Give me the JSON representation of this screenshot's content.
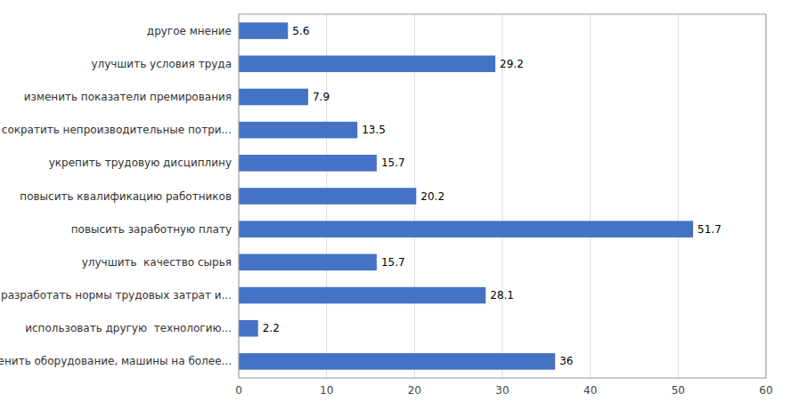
{
  "chart_data": {
    "type": "bar",
    "orientation": "horizontal",
    "categories": [
      "заменить оборудование, машины на более...",
      "использовать другую  технологию...",
      "разработать нормы трудовых затрат и...",
      "улучшить  качество сырья",
      "повысить заработную плату",
      "повысить квалификацию работников",
      "укрепить трудовую дисциплину",
      "сократить непроизводительные потри...",
      "изменить показатели премирования",
      "улучшить условия труда",
      "другое мнение"
    ],
    "values": [
      36,
      2.2,
      28.1,
      15.7,
      51.7,
      20.2,
      15.7,
      13.5,
      7.9,
      29.2,
      5.6
    ],
    "color": "#4472c4",
    "xlim": [
      0,
      60
    ],
    "xticks": [
      0,
      10,
      20,
      30,
      40,
      50,
      60
    ],
    "grid": true,
    "data_labels": true
  }
}
